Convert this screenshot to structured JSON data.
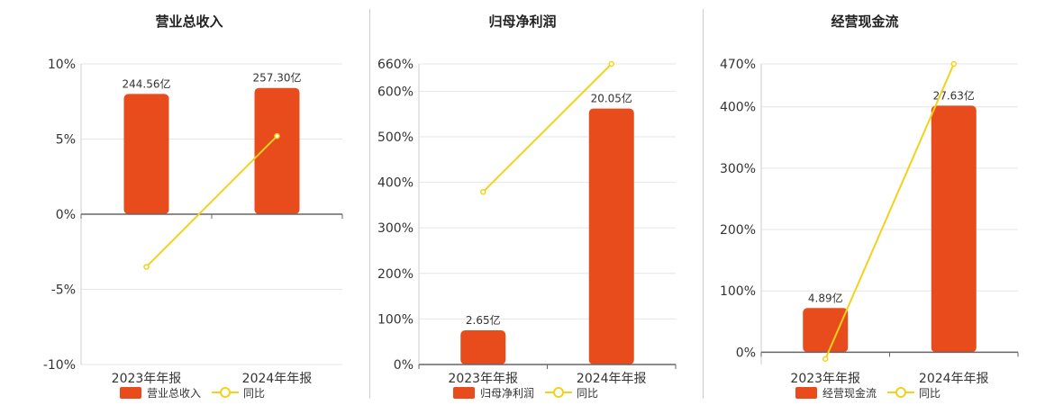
{
  "colors": {
    "bar": "#e84c1c",
    "line": "#f2d21b"
  },
  "chart_data": [
    {
      "type": "bar",
      "title": "营业总收入",
      "categories": [
        "2023年年报",
        "2024年年报"
      ],
      "series": [
        {
          "name": "营业总收入",
          "type": "bar",
          "values": [
            8.0,
            8.4
          ],
          "labels": [
            "244.56亿",
            "257.30亿"
          ]
        },
        {
          "name": "同比",
          "type": "line",
          "values": [
            -3.5,
            5.2
          ]
        }
      ],
      "yticks": [
        "10%",
        "5%",
        "0%",
        "-5%",
        "-10%"
      ],
      "ylim": [
        -10,
        10
      ],
      "grid": true,
      "legend": "bottom"
    },
    {
      "type": "bar",
      "title": "归母净利润",
      "categories": [
        "2023年年报",
        "2024年年报"
      ],
      "series": [
        {
          "name": "归母净利润",
          "type": "bar",
          "values": [
            75,
            562
          ],
          "labels": [
            "2.65亿",
            "20.05亿"
          ]
        },
        {
          "name": "同比",
          "type": "line",
          "values": [
            379,
            660
          ]
        }
      ],
      "yticks": [
        "660%",
        "600%",
        "500%",
        "400%",
        "300%",
        "200%",
        "100%",
        "0%"
      ],
      "ylim": [
        0,
        660
      ],
      "grid": true,
      "legend": "bottom"
    },
    {
      "type": "bar",
      "title": "经营现金流",
      "categories": [
        "2023年年报",
        "2024年年报"
      ],
      "series": [
        {
          "name": "经营现金流",
          "type": "bar",
          "values": [
            72,
            402
          ],
          "labels": [
            "4.89亿",
            "27.63亿"
          ]
        },
        {
          "name": "同比",
          "type": "line",
          "values": [
            -11,
            470
          ]
        }
      ],
      "yticks": [
        "470%",
        "400%",
        "300%",
        "200%",
        "100%",
        "0%"
      ],
      "ylim": [
        -20,
        470
      ],
      "grid": true,
      "legend": "bottom"
    }
  ]
}
